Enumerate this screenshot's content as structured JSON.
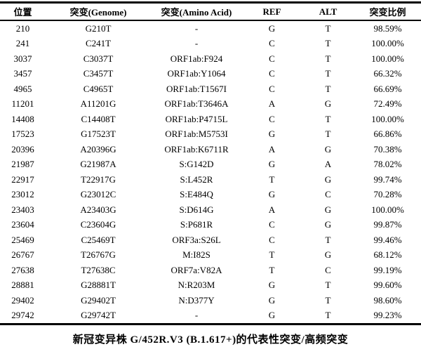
{
  "page": {
    "caption": "新冠变异株 G/452R.V3 (B.1.617+)的代表性突变/高频突变"
  },
  "colors": {
    "text": "#000000",
    "background": "#ffffff",
    "border": "#000000"
  },
  "table": {
    "columns": [
      "位置",
      "突变(Genome)",
      "突变(Amino Acid)",
      "REF",
      "ALT",
      "突变比例"
    ],
    "rows": [
      [
        "210",
        "G210T",
        "-",
        "G",
        "T",
        "98.59%"
      ],
      [
        "241",
        "C241T",
        "-",
        "C",
        "T",
        "100.00%"
      ],
      [
        "3037",
        "C3037T",
        "ORF1ab:F924",
        "C",
        "T",
        "100.00%"
      ],
      [
        "3457",
        "C3457T",
        "ORF1ab:Y1064",
        "C",
        "T",
        "66.32%"
      ],
      [
        "4965",
        "C4965T",
        "ORF1ab:T1567I",
        "C",
        "T",
        "66.69%"
      ],
      [
        "11201",
        "A11201G",
        "ORF1ab:T3646A",
        "A",
        "G",
        "72.49%"
      ],
      [
        "14408",
        "C14408T",
        "ORF1ab:P4715L",
        "C",
        "T",
        "100.00%"
      ],
      [
        "17523",
        "G17523T",
        "ORF1ab:M5753I",
        "G",
        "T",
        "66.86%"
      ],
      [
        "20396",
        "A20396G",
        "ORF1ab:K6711R",
        "A",
        "G",
        "70.38%"
      ],
      [
        "21987",
        "G21987A",
        "S:G142D",
        "G",
        "A",
        "78.02%"
      ],
      [
        "22917",
        "T22917G",
        "S:L452R",
        "T",
        "G",
        "99.74%"
      ],
      [
        "23012",
        "G23012C",
        "S:E484Q",
        "G",
        "C",
        "70.28%"
      ],
      [
        "23403",
        "A23403G",
        "S:D614G",
        "A",
        "G",
        "100.00%"
      ],
      [
        "23604",
        "C23604G",
        "S:P681R",
        "C",
        "G",
        "99.87%"
      ],
      [
        "25469",
        "C25469T",
        "ORF3a:S26L",
        "C",
        "T",
        "99.46%"
      ],
      [
        "26767",
        "T26767G",
        "M:I82S",
        "T",
        "G",
        "68.12%"
      ],
      [
        "27638",
        "T27638C",
        "ORF7a:V82A",
        "T",
        "C",
        "99.19%"
      ],
      [
        "28881",
        "G28881T",
        "N:R203M",
        "G",
        "T",
        "99.60%"
      ],
      [
        "29402",
        "G29402T",
        "N:D377Y",
        "G",
        "T",
        "98.60%"
      ],
      [
        "29742",
        "G29742T",
        "-",
        "G",
        "T",
        "99.23%"
      ]
    ]
  }
}
